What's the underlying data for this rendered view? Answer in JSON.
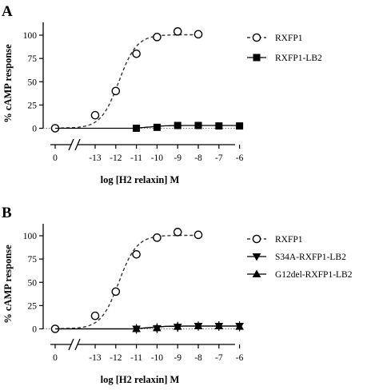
{
  "chart_data": [
    {
      "panel": "A",
      "type": "line",
      "xlabel": "log [H2 relaxin] M",
      "ylabel": "% cAMP response",
      "x_ticks": [
        "0",
        "-13",
        "-12",
        "-11",
        "-10",
        "-9",
        "-8",
        "-7",
        "-6"
      ],
      "y_ticks": [
        "0",
        "25",
        "50",
        "75",
        "100"
      ],
      "ylim": [
        0,
        110
      ],
      "xlim": [
        -14,
        -6
      ],
      "axis_break": true,
      "legend_position": "right",
      "series": [
        {
          "name": "RXFP1",
          "marker": "circle-open",
          "curve": "dashed",
          "x": [
            0,
            -13,
            -12,
            -11,
            -10,
            -9,
            -8
          ],
          "y": [
            0,
            14,
            40,
            80,
            98,
            104,
            101
          ]
        },
        {
          "name": "RXFP1-LB2",
          "marker": "square-filled",
          "curve": "solid",
          "x": [
            -11,
            -10,
            -9,
            -8,
            -7,
            -6
          ],
          "y": [
            0,
            1,
            3,
            3,
            2.5,
            2.5
          ]
        }
      ]
    },
    {
      "panel": "B",
      "type": "line",
      "xlabel": "log [H2 relaxin] M",
      "ylabel": "% cAMP response",
      "x_ticks": [
        "0",
        "-13",
        "-12",
        "-11",
        "-10",
        "-9",
        "-8",
        "-7",
        "-6"
      ],
      "y_ticks": [
        "0",
        "25",
        "50",
        "75",
        "100"
      ],
      "ylim": [
        0,
        110
      ],
      "xlim": [
        -14,
        -6
      ],
      "axis_break": true,
      "legend_position": "right",
      "series": [
        {
          "name": "RXFP1",
          "marker": "circle-open",
          "curve": "dashed",
          "x": [
            0,
            -13,
            -12,
            -11,
            -10,
            -9,
            -8
          ],
          "y": [
            0,
            14,
            40,
            80,
            98,
            104,
            101
          ]
        },
        {
          "name": "S34A-RXFP1-LB2",
          "marker": "triangle-down-filled",
          "curve": "solid",
          "x": [
            -11,
            -10,
            -9,
            -8,
            -7,
            -6
          ],
          "y": [
            0,
            0.5,
            2,
            3,
            3,
            3
          ]
        },
        {
          "name": "G12del-RXFP1-LB2",
          "marker": "triangle-up-filled",
          "curve": "solid",
          "x": [
            -11,
            -10,
            -9,
            -8,
            -7,
            -6
          ],
          "y": [
            0,
            1,
            2.5,
            3,
            3,
            2.5
          ]
        }
      ]
    }
  ]
}
